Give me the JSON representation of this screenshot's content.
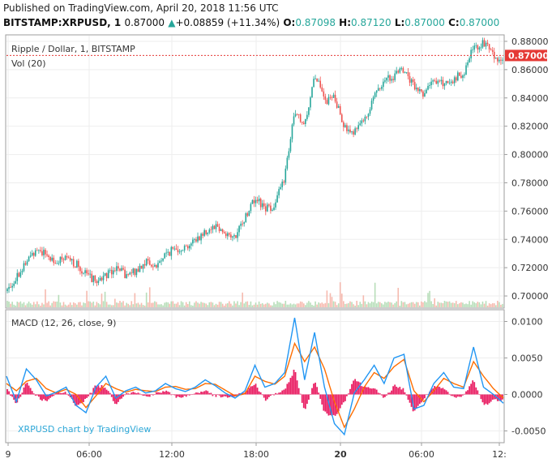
{
  "header": {
    "published": "Published on TradingView.com, April 20, 2018 11:56 UTC",
    "symbol": "BITSTAMP:XRPUSD, 1",
    "last": "0.87000",
    "change": "+0.08859 (+11.34%)",
    "o_label": "O:",
    "o": "0.87098",
    "h_label": "H:",
    "h": "0.87120",
    "l_label": "L:",
    "l": "0.87000",
    "c_label": "C:",
    "c": "0.87000"
  },
  "colors": {
    "up": "#26a69a",
    "down": "#ef5350",
    "macd": "#2196f3",
    "signal": "#ff6d00",
    "hist": "#e91e63",
    "price_line": "#e53935"
  },
  "chart_data": [
    {
      "type": "candlestick",
      "title": "Ripple / Dollar, 1, BITSTAMP",
      "indicator": "Vol (20)",
      "last_price_label": "0.87000",
      "last_price": 0.87,
      "ylim": [
        0.692,
        0.884
      ],
      "y_ticks": [
        "0.88000",
        "0.86000",
        "0.84000",
        "0.82000",
        "0.80000",
        "0.78000",
        "0.76000",
        "0.74000",
        "0.72000",
        "0.70000"
      ],
      "x_ticks": [
        "9",
        "06:00",
        "12:00",
        "18:00",
        "20",
        "06:00",
        "12:"
      ],
      "price_path": {
        "x": [
          0,
          2,
          4,
          6,
          8,
          10,
          12,
          14,
          16,
          18,
          20,
          22,
          24,
          26,
          28,
          30,
          32,
          34,
          36,
          38,
          40,
          42,
          44,
          46,
          48,
          50,
          52,
          54,
          56,
          58,
          60,
          62,
          64,
          66,
          68,
          70,
          72,
          74,
          76,
          78,
          80,
          82,
          84,
          86,
          88,
          90,
          92,
          94,
          96,
          98,
          100
        ],
        "y": [
          0.7035,
          0.714,
          0.7235,
          0.734,
          0.729,
          0.724,
          0.726,
          0.7225,
          0.7155,
          0.7105,
          0.715,
          0.7205,
          0.714,
          0.7175,
          0.7245,
          0.7205,
          0.7295,
          0.7335,
          0.7345,
          0.7395,
          0.7455,
          0.7505,
          0.7445,
          0.7405,
          0.7555,
          0.7695,
          0.7615,
          0.7645,
          0.7845,
          0.8295,
          0.8195,
          0.8575,
          0.8375,
          0.8395,
          0.8205,
          0.8155,
          0.8255,
          0.8405,
          0.8525,
          0.8555,
          0.8595,
          0.8475,
          0.8435,
          0.8515,
          0.8505,
          0.8535,
          0.8575,
          0.8755,
          0.8785,
          0.8705,
          0.8645
        ]
      }
    },
    {
      "type": "line",
      "title": "MACD (12, 26, close, 9)",
      "ylim": [
        -0.0065,
        0.0115
      ],
      "y_ticks": [
        "0.0100",
        "0.0050",
        "0.0000",
        "-0.0050"
      ],
      "series": [
        {
          "name": "MACD",
          "x": [
            0,
            2,
            4,
            6,
            8,
            10,
            12,
            14,
            16,
            18,
            20,
            22,
            24,
            26,
            28,
            30,
            32,
            34,
            36,
            38,
            40,
            42,
            44,
            46,
            48,
            50,
            52,
            54,
            56,
            58,
            60,
            62,
            64,
            66,
            68,
            70,
            72,
            74,
            76,
            78,
            80,
            82,
            84,
            86,
            88,
            90,
            92,
            94,
            96,
            98,
            100
          ],
          "values": [
            0.0025,
            -0.001,
            0.0035,
            0.002,
            -0.0002,
            0.0003,
            0.001,
            -0.0015,
            -0.0025,
            0.001,
            0.0025,
            -0.0005,
            0.0005,
            0.001,
            0.0002,
            0.0005,
            0.0015,
            0.0008,
            0.0004,
            0.001,
            0.002,
            0.0012,
            0.0002,
            -0.0005,
            0.0005,
            0.004,
            0.001,
            0.0015,
            0.003,
            0.0105,
            0.002,
            0.0085,
            0.001,
            -0.004,
            -0.0055,
            0.0002,
            0.002,
            0.004,
            0.0015,
            0.005,
            0.0055,
            -0.002,
            -0.0015,
            0.0015,
            0.003,
            0.001,
            0.0008,
            0.0065,
            0.001,
            0.0,
            -0.0012
          ]
        },
        {
          "name": "Signal",
          "x": [
            0,
            2,
            4,
            6,
            8,
            10,
            12,
            14,
            16,
            18,
            20,
            22,
            24,
            26,
            28,
            30,
            32,
            34,
            36,
            38,
            40,
            42,
            44,
            46,
            48,
            50,
            52,
            54,
            56,
            58,
            60,
            62,
            64,
            66,
            68,
            70,
            72,
            74,
            76,
            78,
            80,
            82,
            84,
            86,
            88,
            90,
            92,
            94,
            96,
            98,
            100
          ],
          "values": [
            0.0015,
            0.0005,
            0.0018,
            0.0022,
            0.0008,
            0.0002,
            0.0007,
            0.0,
            -0.0018,
            -0.0002,
            0.0015,
            0.0008,
            0.0003,
            0.0007,
            0.0005,
            0.0004,
            0.001,
            0.0011,
            0.0007,
            0.0008,
            0.0015,
            0.0014,
            0.0006,
            -0.0002,
            0.0001,
            0.0025,
            0.0018,
            0.0014,
            0.0025,
            0.007,
            0.0045,
            0.0065,
            0.0035,
            -0.001,
            -0.0045,
            -0.002,
            0.001,
            0.003,
            0.0022,
            0.0038,
            0.0048,
            0.0005,
            -0.001,
            0.0005,
            0.0022,
            0.0015,
            0.001,
            0.0045,
            0.0025,
            0.0008,
            -0.0005
          ]
        },
        {
          "name": "Histogram",
          "x": [
            0,
            2,
            4,
            6,
            8,
            10,
            12,
            14,
            16,
            18,
            20,
            22,
            24,
            26,
            28,
            30,
            32,
            34,
            36,
            38,
            40,
            42,
            44,
            46,
            48,
            50,
            52,
            54,
            56,
            58,
            60,
            62,
            64,
            66,
            68,
            70,
            72,
            74,
            76,
            78,
            80,
            82,
            84,
            86,
            88,
            90,
            92,
            94,
            96,
            98,
            100
          ],
          "values": [
            0.001,
            -0.0015,
            0.0017,
            -0.0002,
            -0.001,
            0.0001,
            0.0003,
            -0.0015,
            -0.0007,
            0.0012,
            0.001,
            -0.0013,
            0.0002,
            0.0003,
            -0.0003,
            0.0001,
            0.0005,
            -0.0003,
            -0.0003,
            0.0002,
            0.0005,
            -0.0002,
            -0.0004,
            -0.0003,
            0.0004,
            0.0015,
            -0.0008,
            0.0001,
            0.0005,
            0.0035,
            -0.0025,
            0.002,
            -0.0025,
            -0.003,
            -0.001,
            0.0022,
            0.001,
            0.001,
            -0.0007,
            0.0012,
            0.0007,
            -0.0025,
            -0.0005,
            0.001,
            0.0008,
            -0.0005,
            -0.0002,
            0.002,
            -0.0015,
            -0.0008,
            -0.0007
          ]
        }
      ]
    }
  ],
  "watermark": "XRPUSD chart by TradingView"
}
